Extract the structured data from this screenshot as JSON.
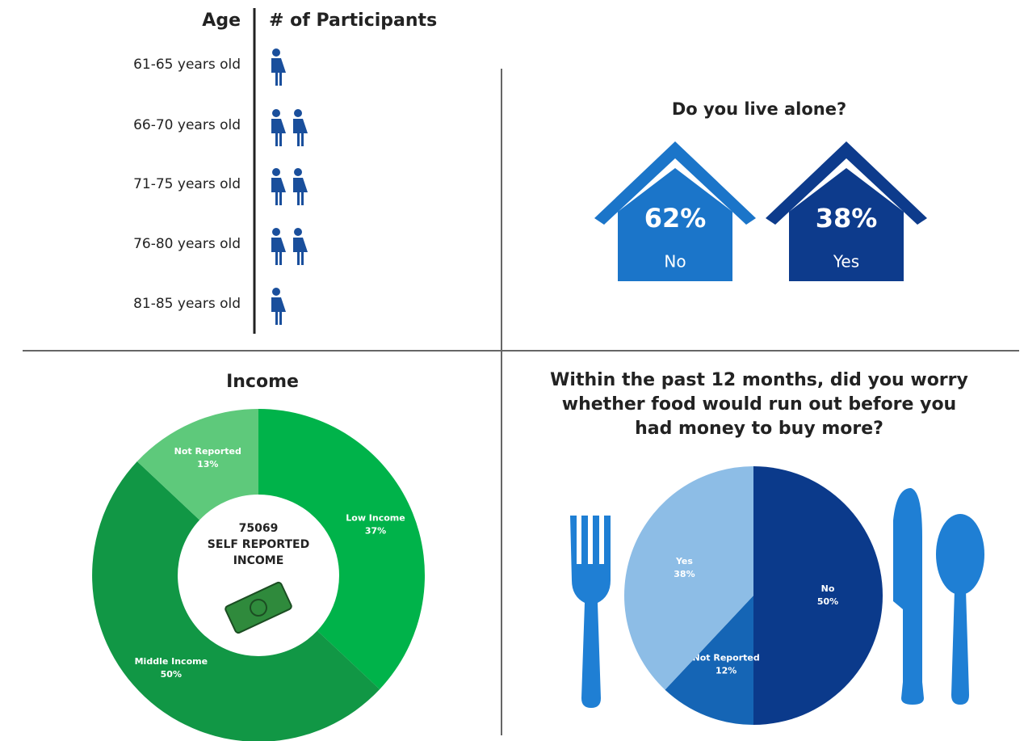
{
  "chart_data": [
    {
      "type": "pictograph",
      "x_label": "Age",
      "y_label": "# of Participants",
      "categories": [
        "61-65 years old",
        "66-70 years old",
        "71-75 years old",
        "76-80 years old",
        "81-85 years old"
      ],
      "values": [
        1,
        2,
        2,
        2,
        1
      ],
      "color": "#1a4f9c"
    },
    {
      "type": "house",
      "title": "Do you live alone?",
      "categories": [
        "No",
        "Yes"
      ],
      "values": [
        62,
        38
      ],
      "value_labels": [
        "62%",
        "38%"
      ],
      "colors": [
        "#1b75c9",
        "#0d3b8c"
      ]
    },
    {
      "type": "donut",
      "title": "Income",
      "center_lines": [
        "75069",
        "SELF REPORTED",
        "INCOME"
      ],
      "categories": [
        "Low Income",
        "Middle Income",
        "Not Reported"
      ],
      "values": [
        37,
        50,
        13
      ],
      "value_labels": [
        "37%",
        "50%",
        "13%"
      ],
      "colors": [
        "#00b34a",
        "#119745",
        "#5ec97b"
      ]
    },
    {
      "type": "pie",
      "title": "Within the past 12 months, did you worry whether food would run out before you had money to buy more?",
      "categories": [
        "No",
        "Not Reported",
        "Yes"
      ],
      "values": [
        50,
        12,
        38
      ],
      "value_labels": [
        "50%",
        "12%",
        "38%"
      ],
      "colors": [
        "#0b3a8b",
        "#1565b5",
        "#8dbde6"
      ]
    }
  ]
}
